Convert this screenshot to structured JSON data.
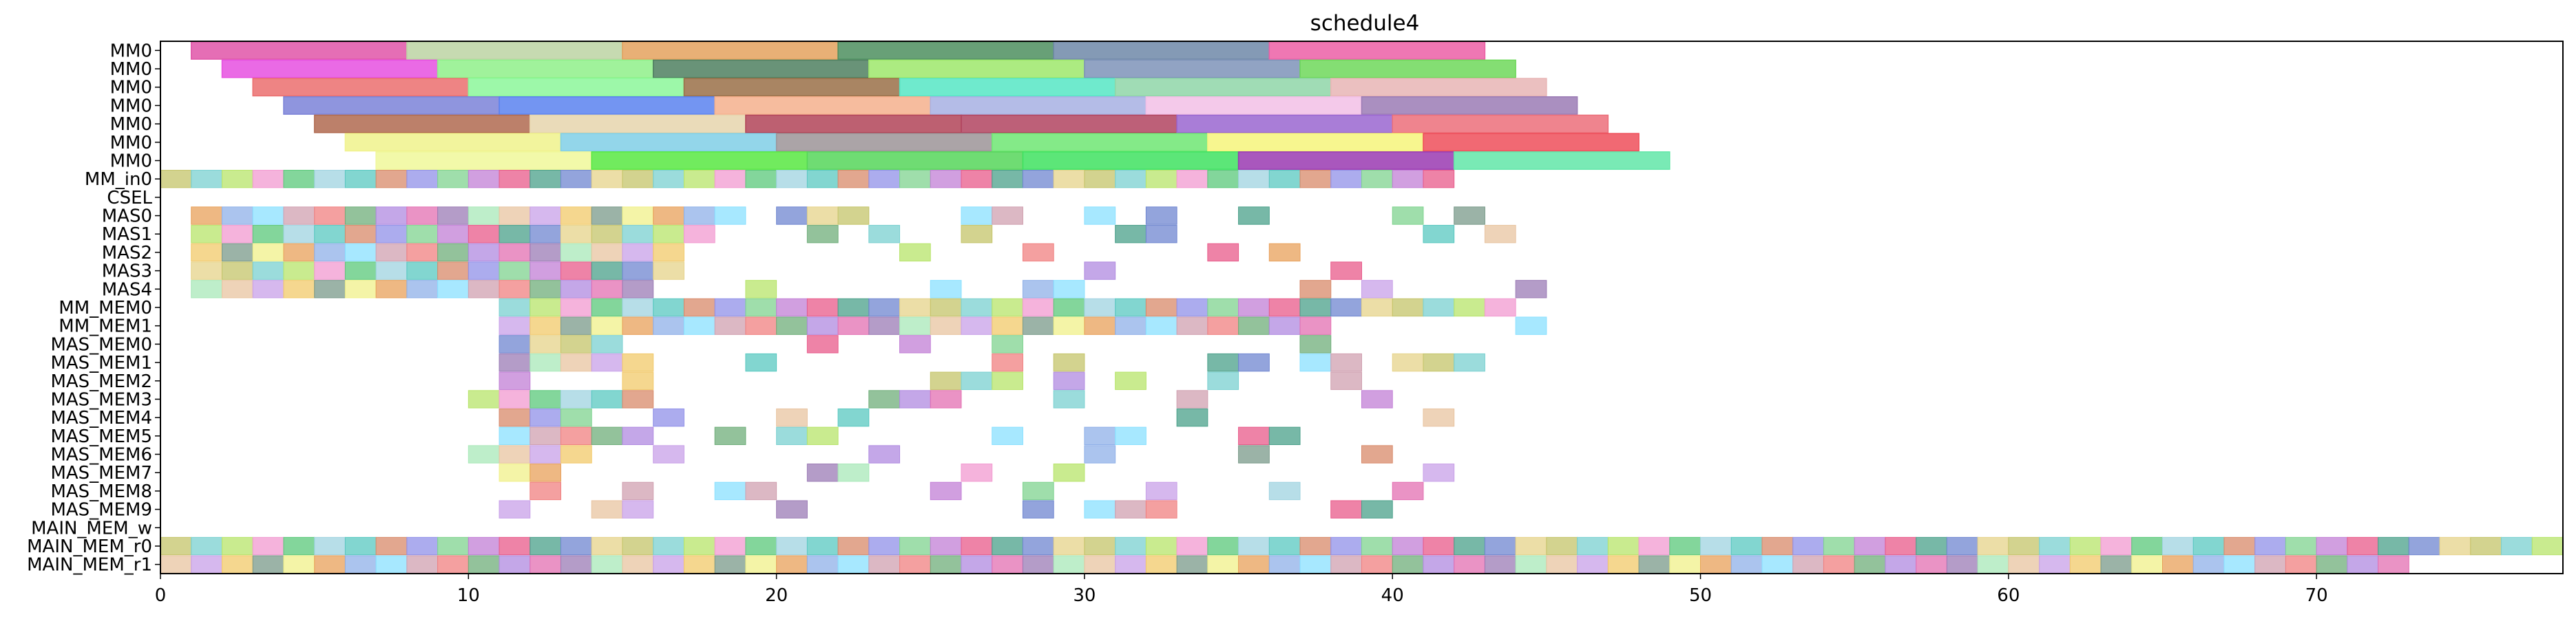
{
  "chart_data": {
    "type": "gantt",
    "title": "schedule4",
    "xlabel": "",
    "ylabel": "",
    "xlim": [
      0,
      78
    ],
    "x_ticks": [
      0,
      10,
      20,
      30,
      40,
      50,
      60,
      70
    ],
    "grid": false,
    "rows": [
      "MM0",
      "MM0",
      "MM0",
      "MM0",
      "MM0",
      "MM0",
      "MM0",
      "MM_in0",
      "CSEL",
      "MAS0",
      "MAS1",
      "MAS2",
      "MAS3",
      "MAS4",
      "MM_MEM0",
      "MM_MEM1",
      "MAS_MEM0",
      "MAS_MEM1",
      "MAS_MEM2",
      "MAS_MEM3",
      "MAS_MEM4",
      "MAS_MEM5",
      "MAS_MEM6",
      "MAS_MEM7",
      "MAS_MEM8",
      "MAS_MEM9",
      "MAIN_MEM_w",
      "MAIN_MEM_r0",
      "MAIN_MEM_r1"
    ],
    "long_tasks": [
      {
        "row": 0,
        "segments": [
          [
            1,
            8,
            "#e055a8"
          ],
          [
            8,
            15,
            "#bcd3a3"
          ],
          [
            15,
            22,
            "#e4a25e"
          ],
          [
            22,
            29,
            "#4e8f5f"
          ],
          [
            29,
            36,
            "#6f88a8"
          ],
          [
            36,
            43,
            "#ec5fa6"
          ]
        ]
      },
      {
        "row": 1,
        "segments": [
          [
            2,
            9,
            "#e650e0"
          ],
          [
            9,
            16,
            "#8ff08a"
          ],
          [
            16,
            23,
            "#4f8060"
          ],
          [
            23,
            30,
            "#9ee86b"
          ],
          [
            30,
            37,
            "#7e93b8"
          ],
          [
            37,
            44,
            "#6ed85a"
          ]
        ]
      },
      {
        "row": 2,
        "segments": [
          [
            3,
            10,
            "#eb6f6f"
          ],
          [
            10,
            17,
            "#8cf79a"
          ],
          [
            17,
            24,
            "#9a7048"
          ],
          [
            24,
            31,
            "#56e6c4"
          ],
          [
            31,
            38,
            "#8fd6a8"
          ],
          [
            38,
            45,
            "#e8b5b5"
          ]
        ]
      },
      {
        "row": 3,
        "segments": [
          [
            4,
            11,
            "#7b83d8"
          ],
          [
            11,
            18,
            "#5a82f0"
          ],
          [
            18,
            25,
            "#f5b08d"
          ],
          [
            25,
            32,
            "#a7b0e3"
          ],
          [
            32,
            39,
            "#f2bfe6"
          ],
          [
            39,
            46,
            "#9b7bb5"
          ]
        ]
      },
      {
        "row": 4,
        "segments": [
          [
            5,
            12,
            "#b06a50"
          ],
          [
            12,
            19,
            "#e6d5ad"
          ],
          [
            19,
            26,
            "#b24458"
          ],
          [
            26,
            33,
            "#b14460"
          ],
          [
            33,
            40,
            "#9a66d0"
          ],
          [
            40,
            47,
            "#ec6f7a"
          ]
        ]
      },
      {
        "row": 5,
        "segments": [
          [
            6,
            13,
            "#f0f28c"
          ],
          [
            13,
            20,
            "#80cfe6"
          ],
          [
            20,
            27,
            "#9c9498"
          ],
          [
            27,
            34,
            "#6fe673"
          ],
          [
            34,
            41,
            "#f6f57b"
          ],
          [
            41,
            48,
            "#ee4f5a"
          ]
        ]
      },
      {
        "row": 6,
        "segments": [
          [
            7,
            14,
            "#f0f89a"
          ],
          [
            14,
            21,
            "#58e842"
          ],
          [
            21,
            28,
            "#56d65a"
          ],
          [
            28,
            35,
            "#3fe260"
          ],
          [
            35,
            42,
            "#9a3ab2"
          ],
          [
            42,
            49,
            "#62e6a8"
          ]
        ]
      }
    ],
    "palette": [
      "#e36fb2",
      "#9fd3e0",
      "#c8a0e8",
      "#7fd38f",
      "#e8a05a",
      "#6f86d0",
      "#f08080",
      "#b7e46a",
      "#9b7bb5",
      "#58c8c0",
      "#f2c96a",
      "#c27fd6",
      "#8fb0e8",
      "#e6d38a",
      "#6fae7a",
      "#f29ad0",
      "#a8e8b8",
      "#d88a6a",
      "#7a9a8a",
      "#e85a8a",
      "#8ae0ff",
      "#c4c46a",
      "#b08ae0",
      "#5ac87a",
      "#e8c4a0",
      "#9090e8",
      "#f0f08a",
      "#4aa08a",
      "#d0a0b0",
      "#7ad0d0"
    ],
    "sparse_rows": [
      {
        "row": 7,
        "cells": [
          0,
          1,
          2,
          3,
          4,
          5,
          6,
          7,
          8,
          9,
          10,
          11,
          12,
          13,
          14,
          15,
          16,
          17,
          18,
          19,
          20,
          21,
          22,
          23,
          24,
          25,
          26,
          27,
          28,
          29,
          30,
          31,
          32,
          33,
          34,
          35,
          36,
          37,
          38,
          39,
          40,
          41
        ]
      },
      {
        "row": 8,
        "cells": []
      },
      {
        "row": 9,
        "cells": [
          1,
          2,
          3,
          4,
          5,
          6,
          7,
          8,
          9,
          10,
          11,
          12,
          13,
          14,
          15,
          16,
          17,
          18,
          20,
          21,
          22,
          26,
          27,
          30,
          32,
          35,
          40,
          42
        ]
      },
      {
        "row": 10,
        "cells": [
          1,
          2,
          3,
          4,
          5,
          6,
          7,
          8,
          9,
          10,
          11,
          12,
          13,
          14,
          15,
          16,
          17,
          21,
          23,
          26,
          31,
          32,
          41,
          43
        ]
      },
      {
        "row": 11,
        "cells": [
          1,
          2,
          3,
          4,
          5,
          6,
          7,
          8,
          9,
          10,
          11,
          12,
          13,
          14,
          15,
          16,
          24,
          28,
          34,
          36
        ]
      },
      {
        "row": 12,
        "cells": [
          1,
          2,
          3,
          4,
          5,
          6,
          7,
          8,
          9,
          10,
          11,
          12,
          13,
          14,
          15,
          16,
          30,
          38
        ]
      },
      {
        "row": 13,
        "cells": [
          1,
          2,
          3,
          4,
          5,
          6,
          7,
          8,
          9,
          10,
          11,
          12,
          13,
          14,
          15,
          19,
          25,
          28,
          29,
          37,
          39,
          44
        ]
      },
      {
        "row": 14,
        "cells": [
          11,
          12,
          13,
          14,
          15,
          16,
          17,
          18,
          19,
          20,
          21,
          22,
          23,
          24,
          25,
          26,
          27,
          28,
          29,
          30,
          31,
          32,
          33,
          34,
          35,
          36,
          37,
          38,
          39,
          40,
          41,
          42,
          43
        ]
      },
      {
        "row": 15,
        "cells": [
          11,
          12,
          13,
          14,
          15,
          16,
          17,
          18,
          19,
          20,
          21,
          22,
          23,
          24,
          25,
          26,
          27,
          28,
          29,
          30,
          31,
          32,
          33,
          34,
          35,
          36,
          37,
          44
        ]
      },
      {
        "row": 16,
        "cells": [
          11,
          12,
          13,
          14,
          21,
          24,
          27,
          37
        ]
      },
      {
        "row": 17,
        "cells": [
          11,
          12,
          13,
          14,
          15,
          19,
          27,
          29,
          34,
          35,
          37,
          38,
          40,
          41,
          42
        ]
      },
      {
        "row": 18,
        "cells": [
          11,
          15,
          25,
          26,
          27,
          29,
          31,
          34,
          38
        ]
      },
      {
        "row": 19,
        "cells": [
          10,
          11,
          12,
          13,
          14,
          15,
          23,
          24,
          25,
          29,
          33,
          39
        ]
      },
      {
        "row": 20,
        "cells": [
          11,
          12,
          13,
          16,
          20,
          22,
          33,
          41
        ]
      },
      {
        "row": 21,
        "cells": [
          11,
          12,
          13,
          14,
          15,
          18,
          20,
          21,
          27,
          30,
          31,
          35,
          36
        ]
      },
      {
        "row": 22,
        "cells": [
          10,
          11,
          12,
          13,
          16,
          23,
          30,
          35,
          39
        ]
      },
      {
        "row": 23,
        "cells": [
          11,
          12,
          21,
          22,
          26,
          29,
          41
        ]
      },
      {
        "row": 24,
        "cells": [
          12,
          15,
          18,
          19,
          25,
          28,
          32,
          36,
          40
        ]
      },
      {
        "row": 25,
        "cells": [
          11,
          14,
          15,
          20,
          28,
          30,
          31,
          32,
          38,
          39
        ]
      },
      {
        "row": 26,
        "cells": []
      },
      {
        "row": 27,
        "cells": [
          0,
          1,
          2,
          3,
          4,
          5,
          6,
          7,
          8,
          9,
          10,
          11,
          12,
          13,
          14,
          15,
          16,
          17,
          18,
          19,
          20,
          21,
          22,
          23,
          24,
          25,
          26,
          27,
          28,
          29,
          30,
          31,
          32,
          33,
          34,
          35,
          36,
          37,
          38,
          39,
          40,
          41,
          42,
          43,
          44,
          45,
          46,
          47,
          48,
          49,
          50,
          51,
          52,
          53,
          54,
          55,
          56,
          57,
          58,
          59,
          60,
          61,
          62,
          63,
          64,
          65,
          66,
          67,
          68,
          69,
          70,
          71,
          72,
          73,
          74,
          75,
          76,
          77
        ]
      },
      {
        "row": 28,
        "cells": [
          0,
          1,
          2,
          3,
          4,
          5,
          6,
          7,
          8,
          9,
          10,
          11,
          12,
          13,
          14,
          15,
          16,
          17,
          18,
          19,
          20,
          21,
          22,
          23,
          24,
          25,
          26,
          27,
          28,
          29,
          30,
          31,
          32,
          33,
          34,
          35,
          36,
          37,
          38,
          39,
          40,
          41,
          42,
          43,
          44,
          45,
          46,
          47,
          48,
          49,
          50,
          51,
          52,
          53,
          54,
          55,
          56,
          57,
          58,
          59,
          60,
          61,
          62,
          63,
          64,
          65,
          66,
          67,
          68,
          69,
          70,
          71,
          72
        ]
      }
    ]
  }
}
